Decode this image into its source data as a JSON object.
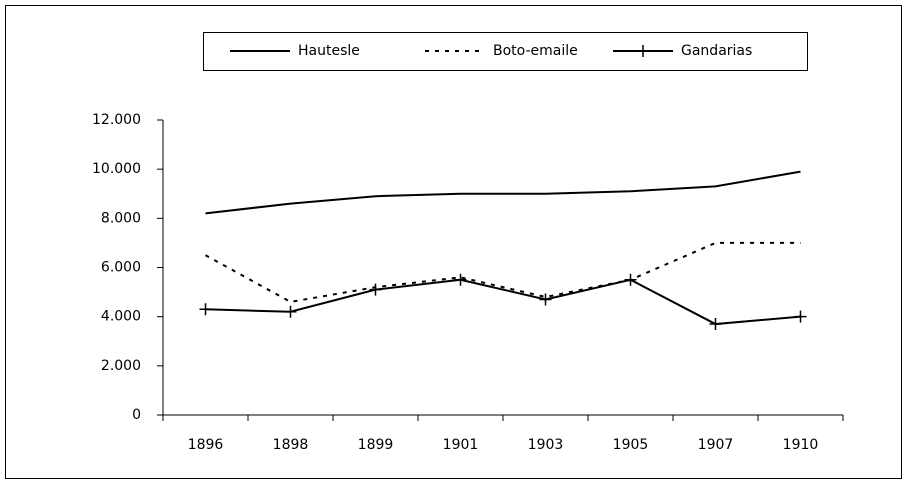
{
  "chart_data": {
    "type": "line",
    "categories": [
      "1896",
      "1898",
      "1899",
      "1901",
      "1903",
      "1905",
      "1907",
      "1910"
    ],
    "series": [
      {
        "name": "Hautesle",
        "color": "#000000",
        "line_style": "solid",
        "values": [
          8200,
          8600,
          8900,
          9000,
          9000,
          9100,
          9300,
          9900
        ]
      },
      {
        "name": "Boto-emaile",
        "color": "#000000",
        "line_style": "dashed",
        "values": [
          6500,
          4600,
          5200,
          5600,
          4800,
          5500,
          7000,
          7000
        ]
      },
      {
        "name": "Gandarias",
        "color": "#000000",
        "line_style": "solid",
        "marker": "plus",
        "values": [
          4300,
          4200,
          5100,
          5500,
          4700,
          5500,
          3700,
          4000
        ]
      }
    ],
    "ylim": [
      0,
      12000
    ],
    "yticks": [
      0,
      {
        "value": 2000,
        "label": "2.000"
      },
      {
        "value": 4000,
        "label": "4.000"
      },
      {
        "value": 6000,
        "label": "6.000"
      },
      {
        "value": 8000,
        "label": "8.000"
      },
      {
        "value": 10000,
        "label": "10.000"
      },
      {
        "value": 12000,
        "label": "12.000"
      }
    ],
    "legend": "top"
  }
}
